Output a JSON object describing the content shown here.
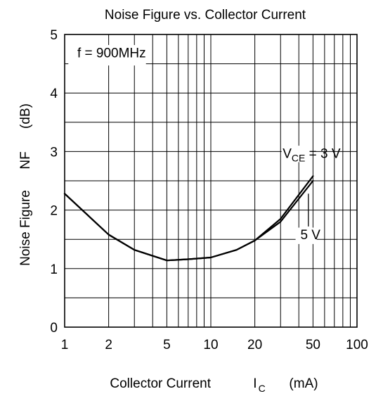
{
  "chart_data": {
    "type": "line",
    "title": "Noise Figure vs. Collector Current",
    "xlabel": "Collector Current",
    "xlabel_symbol": "I",
    "xlabel_subscript": "C",
    "xlabel_unit": "(mA)",
    "ylabel": "Noise Figure",
    "ylabel_symbol": "NF",
    "ylabel_unit": "(dB)",
    "xscale": "log",
    "xlim": [
      1,
      100
    ],
    "ylim": [
      0,
      5
    ],
    "x_ticks": [
      "1",
      "2",
      "5",
      "10",
      "20",
      "50",
      "100"
    ],
    "y_ticks": [
      "0",
      "1",
      "2",
      "3",
      "4",
      "5"
    ],
    "grid": true,
    "condition": "f = 900MHz",
    "series": [
      {
        "name": "VCE = 3 V",
        "label_main": "V",
        "label_sub": "CE",
        "label_rest": " = 3 V",
        "x": [
          1,
          2,
          3,
          5,
          7,
          10,
          15,
          20,
          30,
          50
        ],
        "y": [
          2.28,
          1.58,
          1.32,
          1.14,
          1.16,
          1.19,
          1.32,
          1.48,
          1.85,
          2.58
        ]
      },
      {
        "name": "5 V",
        "label_main": "5 V",
        "x": [
          1,
          2,
          3,
          5,
          7,
          10,
          15,
          20,
          30,
          50
        ],
        "y": [
          2.28,
          1.58,
          1.32,
          1.14,
          1.16,
          1.19,
          1.32,
          1.48,
          1.8,
          2.5
        ]
      }
    ]
  }
}
